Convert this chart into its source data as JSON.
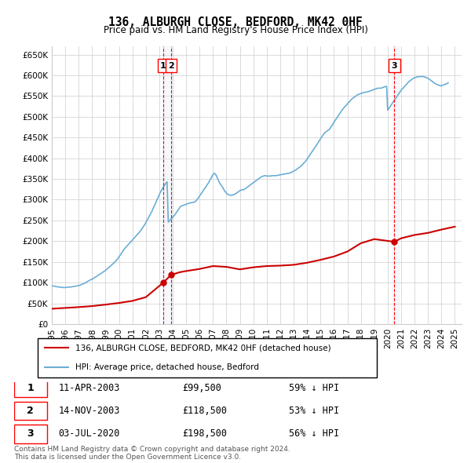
{
  "title": "136, ALBURGH CLOSE, BEDFORD, MK42 0HF",
  "subtitle": "Price paid vs. HM Land Registry's House Price Index (HPI)",
  "xlabel": "",
  "ylabel": "",
  "ylim": [
    0,
    670000
  ],
  "yticks": [
    0,
    50000,
    100000,
    150000,
    200000,
    250000,
    300000,
    350000,
    400000,
    450000,
    500000,
    550000,
    600000,
    650000
  ],
  "ytick_labels": [
    "£0",
    "£50K",
    "£100K",
    "£150K",
    "£200K",
    "£250K",
    "£300K",
    "£350K",
    "£400K",
    "£450K",
    "£500K",
    "£550K",
    "£600K",
    "£650K"
  ],
  "hpi_color": "#6baed6",
  "price_color": "#cc0000",
  "sale_marker_color": "#cc0000",
  "vline_color": "red",
  "shade_color": "#deebf7",
  "legend_line1": "136, ALBURGH CLOSE, BEDFORD, MK42 0HF (detached house)",
  "legend_line2": "HPI: Average price, detached house, Bedford",
  "footer": "Contains HM Land Registry data © Crown copyright and database right 2024.\nThis data is licensed under the Open Government Licence v3.0.",
  "transactions": [
    {
      "num": 1,
      "date": "11-APR-2003",
      "price": 99500,
      "pct": "59%",
      "x_year": 2003.28
    },
    {
      "num": 2,
      "date": "14-NOV-2003",
      "price": 118500,
      "pct": "53%",
      "x_year": 2003.87
    },
    {
      "num": 3,
      "date": "03-JUL-2020",
      "price": 198500,
      "pct": "56%",
      "x_year": 2020.5
    }
  ],
  "xmin": 1995,
  "xmax": 2025.5,
  "xtick_years": [
    1995,
    1996,
    1997,
    1998,
    1999,
    2000,
    2001,
    2002,
    2003,
    2004,
    2005,
    2006,
    2007,
    2008,
    2009,
    2010,
    2011,
    2012,
    2013,
    2014,
    2015,
    2016,
    2017,
    2018,
    2019,
    2020,
    2021,
    2022,
    2023,
    2024,
    2025
  ],
  "hpi_x": [
    1995.0,
    1995.08,
    1995.17,
    1995.25,
    1995.33,
    1995.42,
    1995.5,
    1995.58,
    1995.67,
    1995.75,
    1995.83,
    1995.92,
    1996.0,
    1996.08,
    1996.17,
    1996.25,
    1996.33,
    1996.42,
    1996.5,
    1996.58,
    1996.67,
    1996.75,
    1996.83,
    1996.92,
    1997.0,
    1997.08,
    1997.17,
    1997.25,
    1997.33,
    1997.42,
    1997.5,
    1997.58,
    1997.67,
    1997.75,
    1997.83,
    1997.92,
    1998.0,
    1998.08,
    1998.17,
    1998.25,
    1998.33,
    1998.42,
    1998.5,
    1998.58,
    1998.67,
    1998.75,
    1998.83,
    1998.92,
    1999.0,
    1999.08,
    1999.17,
    1999.25,
    1999.33,
    1999.42,
    1999.5,
    1999.58,
    1999.67,
    1999.75,
    1999.83,
    1999.92,
    2000.0,
    2000.08,
    2000.17,
    2000.25,
    2000.33,
    2000.42,
    2000.5,
    2000.58,
    2000.67,
    2000.75,
    2000.83,
    2000.92,
    2001.0,
    2001.08,
    2001.17,
    2001.25,
    2001.33,
    2001.42,
    2001.5,
    2001.58,
    2001.67,
    2001.75,
    2001.83,
    2001.92,
    2002.0,
    2002.08,
    2002.17,
    2002.25,
    2002.33,
    2002.42,
    2002.5,
    2002.58,
    2002.67,
    2002.75,
    2002.83,
    2002.92,
    2003.0,
    2003.08,
    2003.17,
    2003.25,
    2003.33,
    2003.42,
    2003.5,
    2003.58,
    2003.67,
    2003.75,
    2003.83,
    2003.92,
    2004.0,
    2004.08,
    2004.17,
    2004.25,
    2004.33,
    2004.42,
    2004.5,
    2004.58,
    2004.67,
    2004.75,
    2004.83,
    2004.92,
    2005.0,
    2005.08,
    2005.17,
    2005.25,
    2005.33,
    2005.42,
    2005.5,
    2005.58,
    2005.67,
    2005.75,
    2005.83,
    2005.92,
    2006.0,
    2006.08,
    2006.17,
    2006.25,
    2006.33,
    2006.42,
    2006.5,
    2006.58,
    2006.67,
    2006.75,
    2006.83,
    2006.92,
    2007.0,
    2007.08,
    2007.17,
    2007.25,
    2007.33,
    2007.42,
    2007.5,
    2007.58,
    2007.67,
    2007.75,
    2007.83,
    2007.92,
    2008.0,
    2008.08,
    2008.17,
    2008.25,
    2008.33,
    2008.42,
    2008.5,
    2008.58,
    2008.67,
    2008.75,
    2008.83,
    2008.92,
    2009.0,
    2009.08,
    2009.17,
    2009.25,
    2009.33,
    2009.42,
    2009.5,
    2009.58,
    2009.67,
    2009.75,
    2009.83,
    2009.92,
    2010.0,
    2010.08,
    2010.17,
    2010.25,
    2010.33,
    2010.42,
    2010.5,
    2010.58,
    2010.67,
    2010.75,
    2010.83,
    2010.92,
    2011.0,
    2011.08,
    2011.17,
    2011.25,
    2011.33,
    2011.42,
    2011.5,
    2011.58,
    2011.67,
    2011.75,
    2011.83,
    2011.92,
    2012.0,
    2012.08,
    2012.17,
    2012.25,
    2012.33,
    2012.42,
    2012.5,
    2012.58,
    2012.67,
    2012.75,
    2012.83,
    2012.92,
    2013.0,
    2013.08,
    2013.17,
    2013.25,
    2013.33,
    2013.42,
    2013.5,
    2013.58,
    2013.67,
    2013.75,
    2013.83,
    2013.92,
    2014.0,
    2014.08,
    2014.17,
    2014.25,
    2014.33,
    2014.42,
    2014.5,
    2014.58,
    2014.67,
    2014.75,
    2014.83,
    2014.92,
    2015.0,
    2015.08,
    2015.17,
    2015.25,
    2015.33,
    2015.42,
    2015.5,
    2015.58,
    2015.67,
    2015.75,
    2015.83,
    2015.92,
    2016.0,
    2016.08,
    2016.17,
    2016.25,
    2016.33,
    2016.42,
    2016.5,
    2016.58,
    2016.67,
    2016.75,
    2016.83,
    2016.92,
    2017.0,
    2017.08,
    2017.17,
    2017.25,
    2017.33,
    2017.42,
    2017.5,
    2017.58,
    2017.67,
    2017.75,
    2017.83,
    2017.92,
    2018.0,
    2018.08,
    2018.17,
    2018.25,
    2018.33,
    2018.42,
    2018.5,
    2018.58,
    2018.67,
    2018.75,
    2018.83,
    2018.92,
    2019.0,
    2019.08,
    2019.17,
    2019.25,
    2019.33,
    2019.42,
    2019.5,
    2019.58,
    2019.67,
    2019.75,
    2019.83,
    2019.92,
    2020.0,
    2020.08,
    2020.17,
    2020.25,
    2020.33,
    2020.42,
    2020.5,
    2020.58,
    2020.67,
    2020.75,
    2020.83,
    2020.92,
    2021.0,
    2021.08,
    2021.17,
    2021.25,
    2021.33,
    2021.42,
    2021.5,
    2021.58,
    2021.67,
    2021.75,
    2021.83,
    2021.92,
    2022.0,
    2022.08,
    2022.17,
    2022.25,
    2022.33,
    2022.42,
    2022.5,
    2022.58,
    2022.67,
    2022.75,
    2022.83,
    2022.92,
    2023.0,
    2023.08,
    2023.17,
    2023.25,
    2023.33,
    2023.42,
    2023.5,
    2023.58,
    2023.67,
    2023.75,
    2023.83,
    2023.92,
    2024.0,
    2024.08,
    2024.17,
    2024.25,
    2024.33,
    2024.42,
    2024.5
  ],
  "hpi_y": [
    93000,
    92000,
    91500,
    91000,
    90500,
    90000,
    89500,
    89500,
    89000,
    88500,
    88500,
    88000,
    88500,
    88500,
    89000,
    89000,
    89500,
    89500,
    90000,
    90500,
    91000,
    91500,
    92000,
    92500,
    93000,
    93500,
    95000,
    96000,
    97000,
    98500,
    100000,
    101000,
    103000,
    104500,
    106000,
    107500,
    108000,
    110000,
    112000,
    113500,
    115000,
    117000,
    119000,
    120500,
    122000,
    124000,
    126000,
    127500,
    130000,
    132000,
    134000,
    136500,
    139000,
    141500,
    144000,
    146500,
    149000,
    152000,
    155000,
    158000,
    162000,
    166000,
    170000,
    174000,
    178000,
    182000,
    185000,
    188000,
    191000,
    194000,
    197000,
    200000,
    203000,
    206000,
    209000,
    212000,
    215000,
    218000,
    221000,
    224000,
    228000,
    232000,
    236000,
    240000,
    245000,
    250000,
    255000,
    260000,
    265000,
    270000,
    276000,
    282000,
    288000,
    294000,
    300000,
    306000,
    312000,
    318000,
    323000,
    328000,
    332000,
    336000,
    340000,
    343000,
    246000,
    249000,
    252000,
    255000,
    258000,
    261000,
    264000,
    268000,
    272000,
    276000,
    280000,
    284000,
    285000,
    286000,
    287000,
    288000,
    289000,
    290000,
    291000,
    292000,
    292500,
    293000,
    293500,
    294000,
    295000,
    298000,
    301000,
    305000,
    309000,
    313000,
    317000,
    321000,
    325000,
    329000,
    333000,
    337000,
    341000,
    346000,
    351000,
    356000,
    361000,
    364000,
    362000,
    358000,
    352000,
    345000,
    340000,
    336000,
    332000,
    328000,
    323000,
    319000,
    316000,
    313000,
    312000,
    311000,
    311000,
    311000,
    312000,
    313000,
    314000,
    316000,
    318000,
    320000,
    322000,
    323000,
    324000,
    324000,
    325000,
    327000,
    329000,
    331000,
    333000,
    335000,
    337000,
    339000,
    341000,
    343000,
    345000,
    347000,
    349000,
    351000,
    353000,
    355000,
    356000,
    357000,
    358000,
    358000,
    357000,
    357000,
    357000,
    357000,
    357500,
    358000,
    358000,
    358000,
    358000,
    358500,
    359000,
    359500,
    360000,
    360500,
    361000,
    361500,
    362000,
    362500,
    363000,
    363500,
    364000,
    365000,
    366000,
    367500,
    369000,
    370500,
    372000,
    374000,
    376000,
    378000,
    380000,
    382000,
    385000,
    388000,
    391000,
    394000,
    398000,
    402000,
    406000,
    410000,
    414000,
    418000,
    422000,
    426000,
    430000,
    434000,
    438000,
    443000,
    447000,
    451000,
    455000,
    459000,
    462000,
    464000,
    466000,
    468000,
    470000,
    474000,
    478000,
    482000,
    487000,
    491000,
    495000,
    499000,
    503000,
    507000,
    511000,
    515000,
    519000,
    522000,
    525000,
    528000,
    531000,
    534000,
    537000,
    540000,
    543000,
    545000,
    547000,
    549000,
    551000,
    553000,
    554000,
    555000,
    556000,
    557000,
    558000,
    559000,
    559000,
    559500,
    560000,
    561000,
    562000,
    563000,
    564000,
    565000,
    566000,
    567000,
    568000,
    569000,
    569000,
    569000,
    569000,
    570000,
    571000,
    572000,
    573000,
    573000,
    516000,
    520000,
    524000,
    528000,
    532000,
    536000,
    540000,
    544000,
    548000,
    552000,
    556000,
    560000,
    564000,
    567000,
    570000,
    573000,
    576000,
    579000,
    582000,
    585000,
    587000,
    589000,
    591000,
    593000,
    594000,
    595000,
    596000,
    596500,
    597000,
    597000,
    597000,
    597000,
    597000,
    596000,
    595000,
    594000,
    593000,
    591000,
    589000,
    587000,
    585000,
    583000,
    581000,
    579000,
    578000,
    577000,
    576000,
    575000,
    575000,
    576000,
    577000,
    578000,
    579000,
    580000,
    582000
  ],
  "price_x": [
    1995.0,
    1996.0,
    1997.0,
    1998.0,
    1999.0,
    2000.0,
    2001.0,
    2002.0,
    2003.28,
    2003.87,
    2004.5,
    2005.0,
    2006.0,
    2007.0,
    2008.0,
    2009.0,
    2010.0,
    2011.0,
    2012.0,
    2013.0,
    2014.0,
    2015.0,
    2016.0,
    2017.0,
    2018.0,
    2019.0,
    2020.5,
    2021.0,
    2022.0,
    2023.0,
    2024.0,
    2025.0
  ],
  "price_y": [
    37000,
    39000,
    41000,
    43500,
    47000,
    51000,
    56000,
    65000,
    99500,
    118500,
    125000,
    128000,
    133000,
    140000,
    138000,
    132000,
    137000,
    140000,
    141000,
    143000,
    148000,
    155000,
    163000,
    175000,
    195000,
    205000,
    198500,
    207000,
    215000,
    220000,
    228000,
    235000
  ]
}
